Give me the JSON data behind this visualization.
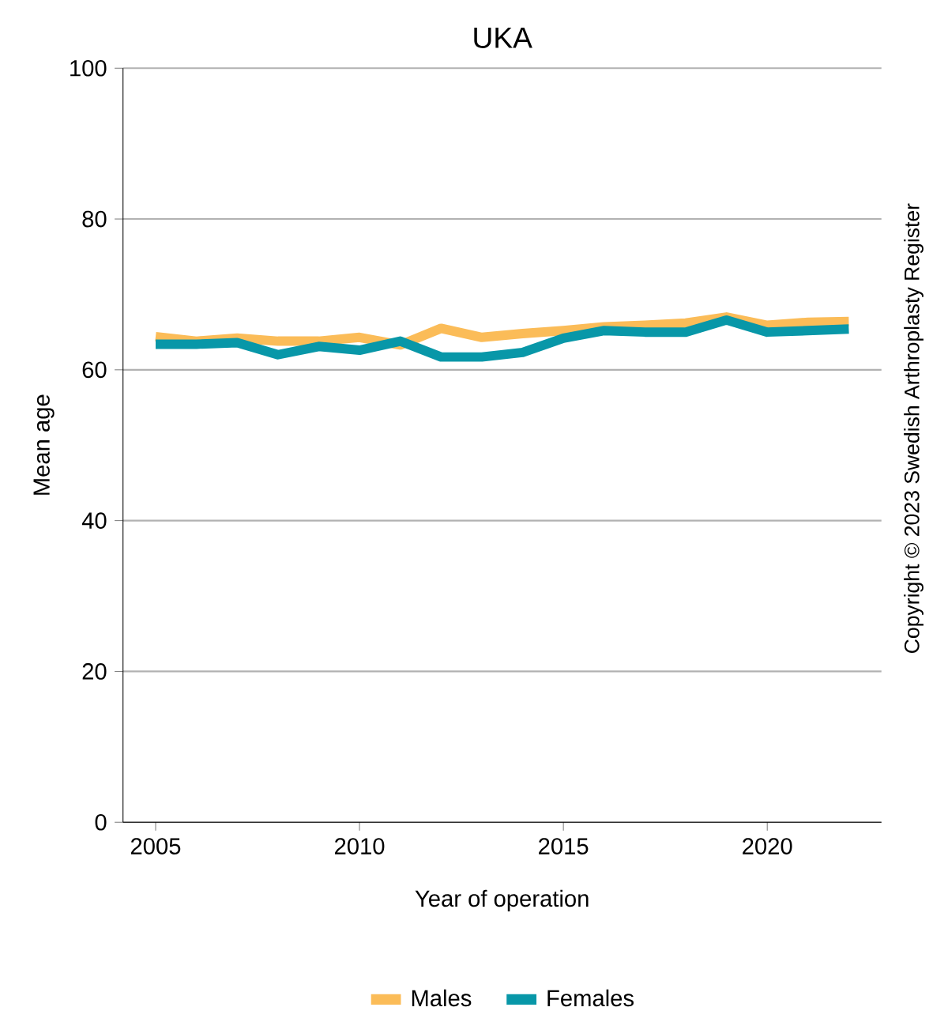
{
  "chart_data": {
    "type": "line",
    "title": "UKA",
    "xlabel": "Year of operation",
    "ylabel": "Mean age",
    "x": [
      2005,
      2006,
      2007,
      2008,
      2009,
      2010,
      2011,
      2012,
      2013,
      2014,
      2015,
      2016,
      2017,
      2018,
      2019,
      2020,
      2021,
      2022
    ],
    "series": [
      {
        "name": "Males",
        "color": "#fbbc58",
        "values": [
          64.4,
          63.8,
          64.2,
          63.8,
          63.8,
          64.3,
          63.3,
          65.5,
          64.3,
          64.8,
          65.2,
          65.7,
          65.9,
          66.2,
          67.0,
          65.9,
          66.3,
          66.4
        ]
      },
      {
        "name": "Females",
        "color": "#0897a8",
        "values": [
          63.4,
          63.4,
          63.6,
          62.0,
          63.1,
          62.6,
          63.8,
          61.7,
          61.7,
          62.3,
          64.2,
          65.2,
          65.0,
          65.0,
          66.6,
          65.0,
          65.2,
          65.4
        ]
      }
    ],
    "xlim": [
      2004.2,
      2022.8
    ],
    "ylim": [
      0,
      100
    ],
    "xticks": [
      2005,
      2010,
      2015,
      2020
    ],
    "yticks": [
      0,
      20,
      40,
      60,
      80,
      100
    ],
    "grid": "y",
    "legend": "bottom",
    "marker": "none",
    "line_style": "solid",
    "annotations": [
      "Copyright © 2023 Swedish Arthroplasty Register"
    ]
  }
}
